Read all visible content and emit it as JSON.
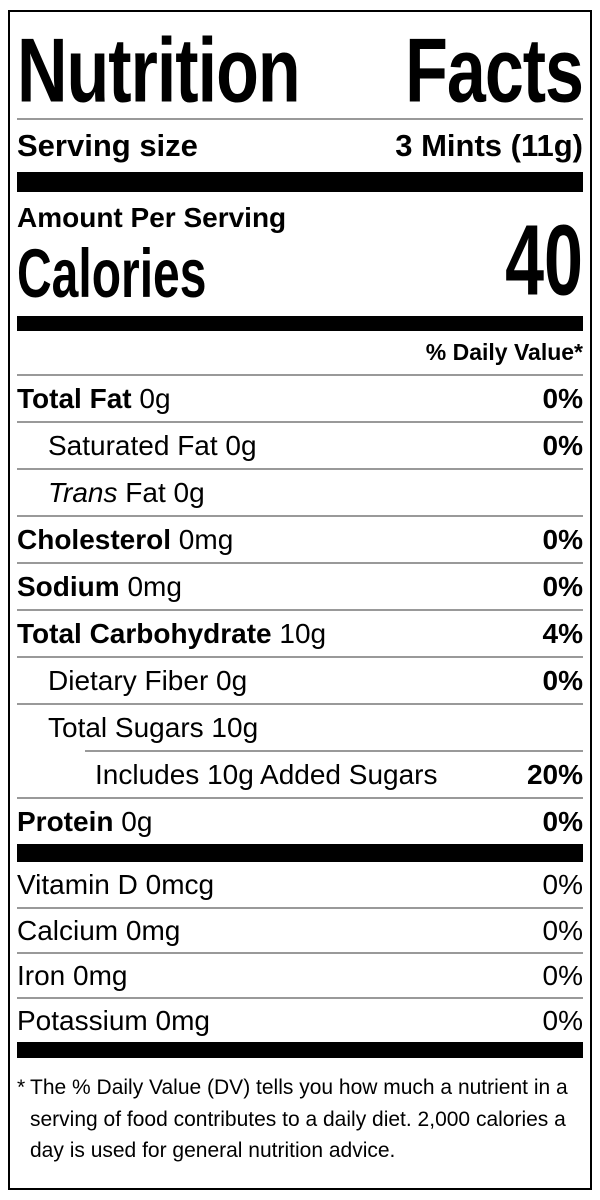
{
  "title": {
    "word1": "Nutrition",
    "word2": "Facts"
  },
  "serving": {
    "label": "Serving size",
    "value": "3 Mints (11g)"
  },
  "calories": {
    "header": "Amount Per Serving",
    "label": "Calories",
    "value": "40"
  },
  "daily_value_header": "% Daily Value*",
  "nutrients": [
    {
      "bold": "Total Fat",
      "rest": " 0g",
      "dv": "0%"
    },
    {
      "rest": "Saturated Fat 0g",
      "dv": "0%"
    },
    {
      "italic": "Trans",
      "rest": " Fat 0g",
      "dv": ""
    },
    {
      "bold": "Cholesterol",
      "rest": " 0mg",
      "dv": "0%"
    },
    {
      "bold": "Sodium",
      "rest": " 0mg",
      "dv": "0%"
    },
    {
      "bold": "Total Carbohydrate",
      "rest": " 10g",
      "dv": "4%"
    },
    {
      "rest": "Dietary Fiber 0g",
      "dv": "0%"
    },
    {
      "rest": "Total Sugars 10g",
      "dv": ""
    },
    {
      "rest": "Includes 10g Added Sugars",
      "dv": "20%"
    },
    {
      "bold": "Protein",
      "rest": " 0g",
      "dv": "0%"
    }
  ],
  "vitamins": [
    {
      "label": "Vitamin D 0mcg",
      "dv": "0%"
    },
    {
      "label": "Calcium 0mg",
      "dv": "0%"
    },
    {
      "label": "Iron 0mg",
      "dv": "0%"
    },
    {
      "label": "Potassium 0mg",
      "dv": "0%"
    }
  ],
  "footnote": {
    "asterisk": "*",
    "lines": [
      "The % Daily Value (DV) tells you how much a nutrient in a",
      "serving of food contributes to a daily diet. 2,000 calories a",
      "day is used for general nutrition advice."
    ]
  },
  "colors": {
    "text": "#000000",
    "bar": "#000000",
    "divider": "#999999",
    "background": "#ffffff"
  }
}
